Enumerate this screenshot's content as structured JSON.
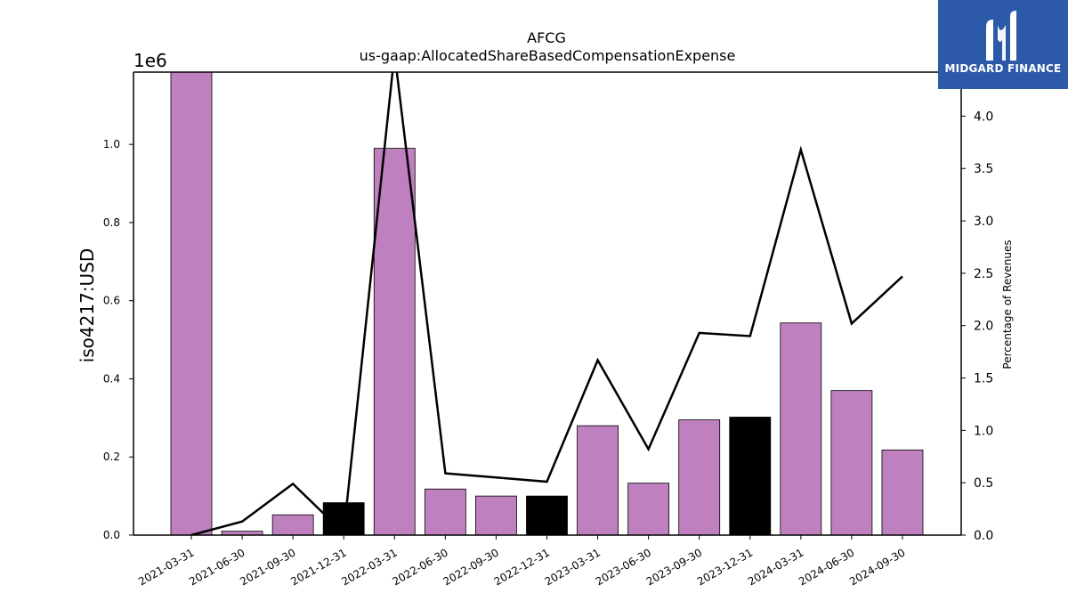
{
  "chart_data": {
    "type": "bar",
    "title": "AFCG",
    "subtitle": "us-gaap:AllocatedShareBasedCompensationExpense",
    "ylabel": "iso4217:USD",
    "ylabel_right": "Percentage of Revenues",
    "y_offset_label": "1e6",
    "categories": [
      "2021-03-31",
      "2021-06-30",
      "2021-09-30",
      "2021-12-31",
      "2022-03-31",
      "2022-06-30",
      "2022-09-30",
      "2022-12-31",
      "2023-03-31",
      "2023-06-30",
      "2023-09-30",
      "2023-12-31",
      "2024-03-31",
      "2024-06-30",
      "2024-09-30"
    ],
    "values": [
      1185000,
      10000,
      52000,
      83000,
      990000,
      118000,
      100000,
      100000,
      280000,
      133000,
      295000,
      302000,
      543000,
      370000,
      218000
    ],
    "bar_colors": [
      "#bf80bf",
      "#bf80bf",
      "#bf80bf",
      "#000000",
      "#bf80bf",
      "#bf80bf",
      "#bf80bf",
      "#000000",
      "#bf80bf",
      "#bf80bf",
      "#bf80bf",
      "#000000",
      "#bf80bf",
      "#bf80bf",
      "#bf80bf"
    ],
    "ylim": [
      0,
      1185000
    ],
    "y_ticks": [
      "0.0",
      "0.2",
      "0.4",
      "0.6",
      "0.8",
      "1.0"
    ],
    "line_series": {
      "values": [
        0.0,
        0.13,
        0.49,
        0.02,
        4.6,
        0.59,
        0.55,
        0.51,
        1.67,
        0.82,
        1.93,
        1.9,
        3.68,
        2.02,
        2.47
      ]
    },
    "y2lim": [
      0,
      4.42
    ],
    "y2_ticks": [
      "0.0",
      "0.5",
      "1.0",
      "1.5",
      "2.0",
      "2.5",
      "3.0",
      "3.5",
      "4.0"
    ],
    "grid": false
  },
  "logo": {
    "text": "MIDGARD FINANCE",
    "color": "#2d5aa8"
  }
}
